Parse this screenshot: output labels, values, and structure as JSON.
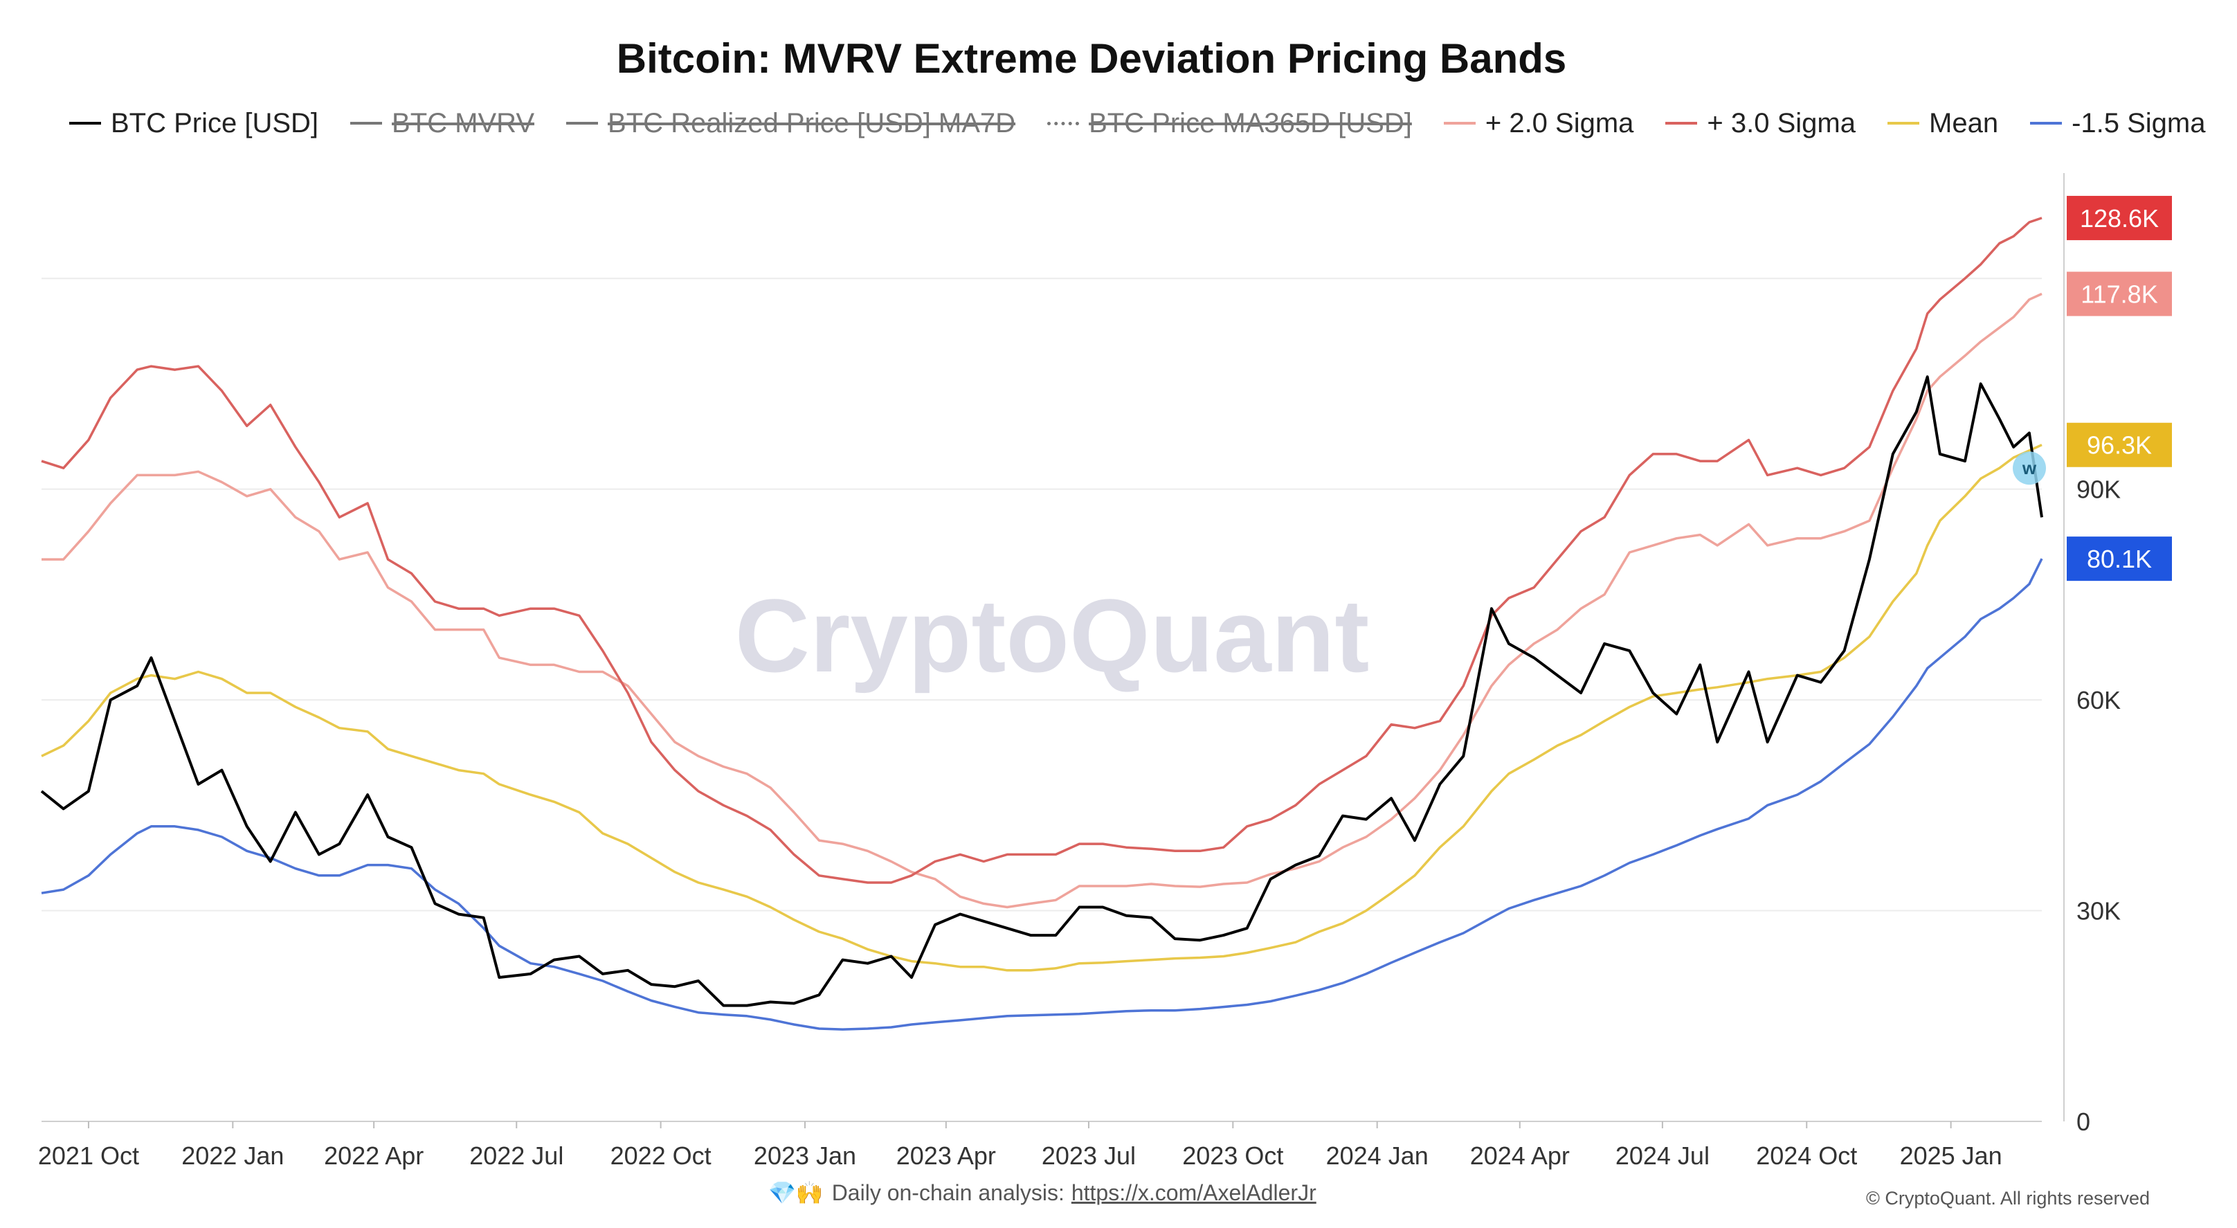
{
  "page": {
    "title": "Bitcoin: MVRV Extreme Deviation Pricing Bands",
    "watermark": "CryptoQuant",
    "footer_emoji": "💎🙌",
    "footer_text": "Daily on-chain analysis:",
    "footer_link": "https://x.com/AxelAdlerJr",
    "copyright": "© CryptoQuant. All rights reserved"
  },
  "legend": [
    {
      "label": "BTC Price [USD]",
      "color": "#000000",
      "style": "solid",
      "hidden": false
    },
    {
      "label": "BTC MVRV",
      "color": "#777777",
      "style": "solid",
      "hidden": true
    },
    {
      "label": "BTC Realized Price [USD] MA7D",
      "color": "#777777",
      "style": "solid",
      "hidden": true
    },
    {
      "label": "BTC Price MA365D [USD]",
      "color": "#777777",
      "style": "dotted",
      "hidden": true
    },
    {
      "label": "+ 2.0 Sigma",
      "color": "#efa39b",
      "style": "solid",
      "hidden": false
    },
    {
      "label": "+ 3.0 Sigma",
      "color": "#d9625f",
      "style": "solid",
      "hidden": false
    },
    {
      "label": "Mean",
      "color": "#e8c84a",
      "style": "solid",
      "hidden": false
    },
    {
      "label": "-1.5 Sigma",
      "color": "#4e74d6",
      "style": "solid",
      "hidden": false
    }
  ],
  "badges": [
    {
      "text": "128.6K",
      "value": 128600,
      "color": "#e2383b"
    },
    {
      "text": "117.8K",
      "value": 117800,
      "color": "#f0918b"
    },
    {
      "text": "96.3K",
      "value": 96300,
      "color": "#e8b923"
    },
    {
      "text": "80.1K",
      "value": 80100,
      "color": "#1f56e0"
    }
  ],
  "chart_data": {
    "type": "line",
    "xlabel": "",
    "ylabel": "",
    "ylim": [
      0,
      135000
    ],
    "grid": true,
    "legend_position": "top",
    "x_ticks": [
      "2021 Oct",
      "2022 Jan",
      "2022 Apr",
      "2022 Jul",
      "2022 Oct",
      "2023 Jan",
      "2023 Apr",
      "2023 Jul",
      "2023 Oct",
      "2024 Jan",
      "2024 Apr",
      "2024 Jul",
      "2024 Oct",
      "2025 Jan"
    ],
    "y_ticks": [
      {
        "value": 0,
        "label": "0"
      },
      {
        "value": 30000,
        "label": "30K"
      },
      {
        "value": 60000,
        "label": "60K"
      },
      {
        "value": 90000,
        "label": "90K"
      }
    ],
    "x": [
      "2021-09-01",
      "2021-09-15",
      "2021-10-01",
      "2021-10-15",
      "2021-11-01",
      "2021-11-10",
      "2021-11-25",
      "2021-12-10",
      "2021-12-25",
      "2022-01-10",
      "2022-01-25",
      "2022-02-10",
      "2022-02-25",
      "2022-03-10",
      "2022-03-28",
      "2022-04-10",
      "2022-04-25",
      "2022-05-10",
      "2022-05-25",
      "2022-06-10",
      "2022-06-20",
      "2022-07-10",
      "2022-07-25",
      "2022-08-10",
      "2022-08-25",
      "2022-09-10",
      "2022-09-25",
      "2022-10-10",
      "2022-10-25",
      "2022-11-10",
      "2022-11-25",
      "2022-12-10",
      "2022-12-25",
      "2023-01-10",
      "2023-01-25",
      "2023-02-10",
      "2023-02-25",
      "2023-03-10",
      "2023-03-25",
      "2023-04-10",
      "2023-04-25",
      "2023-05-10",
      "2023-05-25",
      "2023-06-10",
      "2023-06-25",
      "2023-07-10",
      "2023-07-25",
      "2023-08-10",
      "2023-08-25",
      "2023-09-10",
      "2023-09-25",
      "2023-10-10",
      "2023-10-25",
      "2023-11-10",
      "2023-11-25",
      "2023-12-10",
      "2023-12-25",
      "2024-01-10",
      "2024-01-25",
      "2024-02-10",
      "2024-02-25",
      "2024-03-14",
      "2024-03-25",
      "2024-04-10",
      "2024-04-25",
      "2024-05-10",
      "2024-05-25",
      "2024-06-10",
      "2024-06-25",
      "2024-07-10",
      "2024-07-25",
      "2024-08-05",
      "2024-08-25",
      "2024-09-06",
      "2024-09-25",
      "2024-10-10",
      "2024-10-25",
      "2024-11-10",
      "2024-11-25",
      "2024-12-10",
      "2024-12-17",
      "2024-12-25",
      "2025-01-10",
      "2025-01-20",
      "2025-02-01",
      "2025-02-10",
      "2025-02-20",
      "2025-02-28"
    ],
    "series": [
      {
        "name": "BTC Price [USD]",
        "color": "#000000",
        "values": [
          47000,
          44500,
          47000,
          60000,
          62000,
          66000,
          57000,
          48000,
          50000,
          42000,
          37000,
          44000,
          38000,
          39500,
          46500,
          40500,
          39000,
          31000,
          29500,
          29000,
          20500,
          21000,
          23000,
          23500,
          21000,
          21500,
          19500,
          19200,
          20000,
          16500,
          16500,
          17000,
          16800,
          18000,
          23000,
          22500,
          23500,
          20500,
          28000,
          29500,
          28500,
          27500,
          26500,
          26500,
          30500,
          30500,
          29300,
          29000,
          26000,
          25800,
          26500,
          27500,
          34500,
          36500,
          37800,
          43500,
          43000,
          46000,
          40000,
          48000,
          52000,
          73000,
          68000,
          66000,
          63500,
          61000,
          68000,
          67000,
          61000,
          58000,
          65000,
          54000,
          64000,
          54000,
          63500,
          62500,
          67000,
          80000,
          95000,
          101000,
          106000,
          95000,
          94000,
          105000,
          100000,
          96000,
          98000,
          86000
        ]
      },
      {
        "name": "+ 3.0 Sigma",
        "color": "#d9625f",
        "values": [
          94000,
          93000,
          97000,
          103000,
          107000,
          107500,
          107000,
          107500,
          104000,
          99000,
          102000,
          96000,
          91000,
          86000,
          88000,
          80000,
          78000,
          74000,
          73000,
          73000,
          72000,
          73000,
          73000,
          72000,
          67000,
          61000,
          54000,
          50000,
          47000,
          45000,
          43500,
          41500,
          38000,
          35000,
          34500,
          34000,
          34000,
          35000,
          37000,
          38000,
          37000,
          38000,
          38000,
          38000,
          39500,
          39500,
          39000,
          38800,
          38500,
          38500,
          39000,
          42000,
          43000,
          45000,
          48000,
          50000,
          52000,
          56500,
          56000,
          57000,
          62000,
          72000,
          74500,
          76000,
          80000,
          84000,
          86000,
          92000,
          95000,
          95000,
          94000,
          94000,
          97000,
          92000,
          93000,
          92000,
          93000,
          96000,
          104000,
          110000,
          115000,
          117000,
          120000,
          122000,
          125000,
          126000,
          128000,
          128600
        ]
      },
      {
        "name": "+ 2.0 Sigma",
        "color": "#efa39b",
        "values": [
          80000,
          80000,
          84000,
          88000,
          92000,
          92000,
          92000,
          92500,
          91000,
          89000,
          90000,
          86000,
          84000,
          80000,
          81000,
          76000,
          74000,
          70000,
          70000,
          70000,
          66000,
          65000,
          65000,
          64000,
          64000,
          62000,
          58000,
          54000,
          52000,
          50500,
          49500,
          47500,
          44000,
          40000,
          39500,
          38500,
          37000,
          35500,
          34500,
          32000,
          31000,
          30500,
          31000,
          31500,
          33500,
          33500,
          33500,
          33800,
          33500,
          33400,
          33800,
          34000,
          35200,
          36000,
          37000,
          39000,
          40500,
          43000,
          46000,
          50000,
          55000,
          62000,
          65000,
          68000,
          70000,
          73000,
          75000,
          81000,
          82000,
          83000,
          83500,
          82000,
          85000,
          82000,
          83000,
          83000,
          84000,
          85500,
          93000,
          100000,
          104000,
          106000,
          109000,
          111000,
          113000,
          114500,
          117000,
          117800
        ]
      },
      {
        "name": "Mean",
        "color": "#e8c84a",
        "values": [
          52000,
          53500,
          57000,
          61000,
          63000,
          63500,
          63000,
          64000,
          63000,
          61000,
          61000,
          59000,
          57500,
          56000,
          55500,
          53000,
          52000,
          51000,
          50000,
          49500,
          48000,
          46500,
          45500,
          44000,
          41000,
          39500,
          37500,
          35500,
          34000,
          33000,
          32000,
          30500,
          28700,
          27000,
          26000,
          24500,
          23500,
          22800,
          22500,
          22000,
          22000,
          21500,
          21500,
          21800,
          22500,
          22600,
          22800,
          23000,
          23200,
          23300,
          23500,
          24000,
          24700,
          25500,
          27000,
          28200,
          30000,
          32500,
          35000,
          39000,
          42000,
          47000,
          49500,
          51500,
          53500,
          55000,
          57000,
          59000,
          60500,
          61000,
          61500,
          61800,
          62500,
          63000,
          63500,
          64000,
          66000,
          69000,
          74000,
          78000,
          82000,
          85500,
          89000,
          91500,
          93000,
          94500,
          95500,
          96300
        ]
      },
      {
        "name": "-1.5 Sigma",
        "color": "#4e74d6",
        "values": [
          32500,
          33000,
          35000,
          38000,
          41000,
          42000,
          42000,
          41500,
          40500,
          38500,
          37500,
          36000,
          35000,
          35000,
          36500,
          36500,
          36000,
          33000,
          31000,
          27500,
          25000,
          22500,
          22000,
          21000,
          20000,
          18500,
          17200,
          16300,
          15500,
          15200,
          15000,
          14500,
          13800,
          13200,
          13100,
          13200,
          13400,
          13800,
          14100,
          14400,
          14700,
          15000,
          15100,
          15200,
          15300,
          15500,
          15700,
          15800,
          15800,
          16000,
          16300,
          16600,
          17100,
          17900,
          18700,
          19700,
          21000,
          22600,
          24000,
          25500,
          26800,
          29000,
          30300,
          31500,
          32500,
          33500,
          35000,
          36800,
          38000,
          39300,
          40700,
          41600,
          43100,
          45000,
          46500,
          48400,
          51000,
          53700,
          57600,
          62000,
          64500,
          66000,
          69000,
          71500,
          73000,
          74500,
          76500,
          80100
        ]
      }
    ]
  }
}
